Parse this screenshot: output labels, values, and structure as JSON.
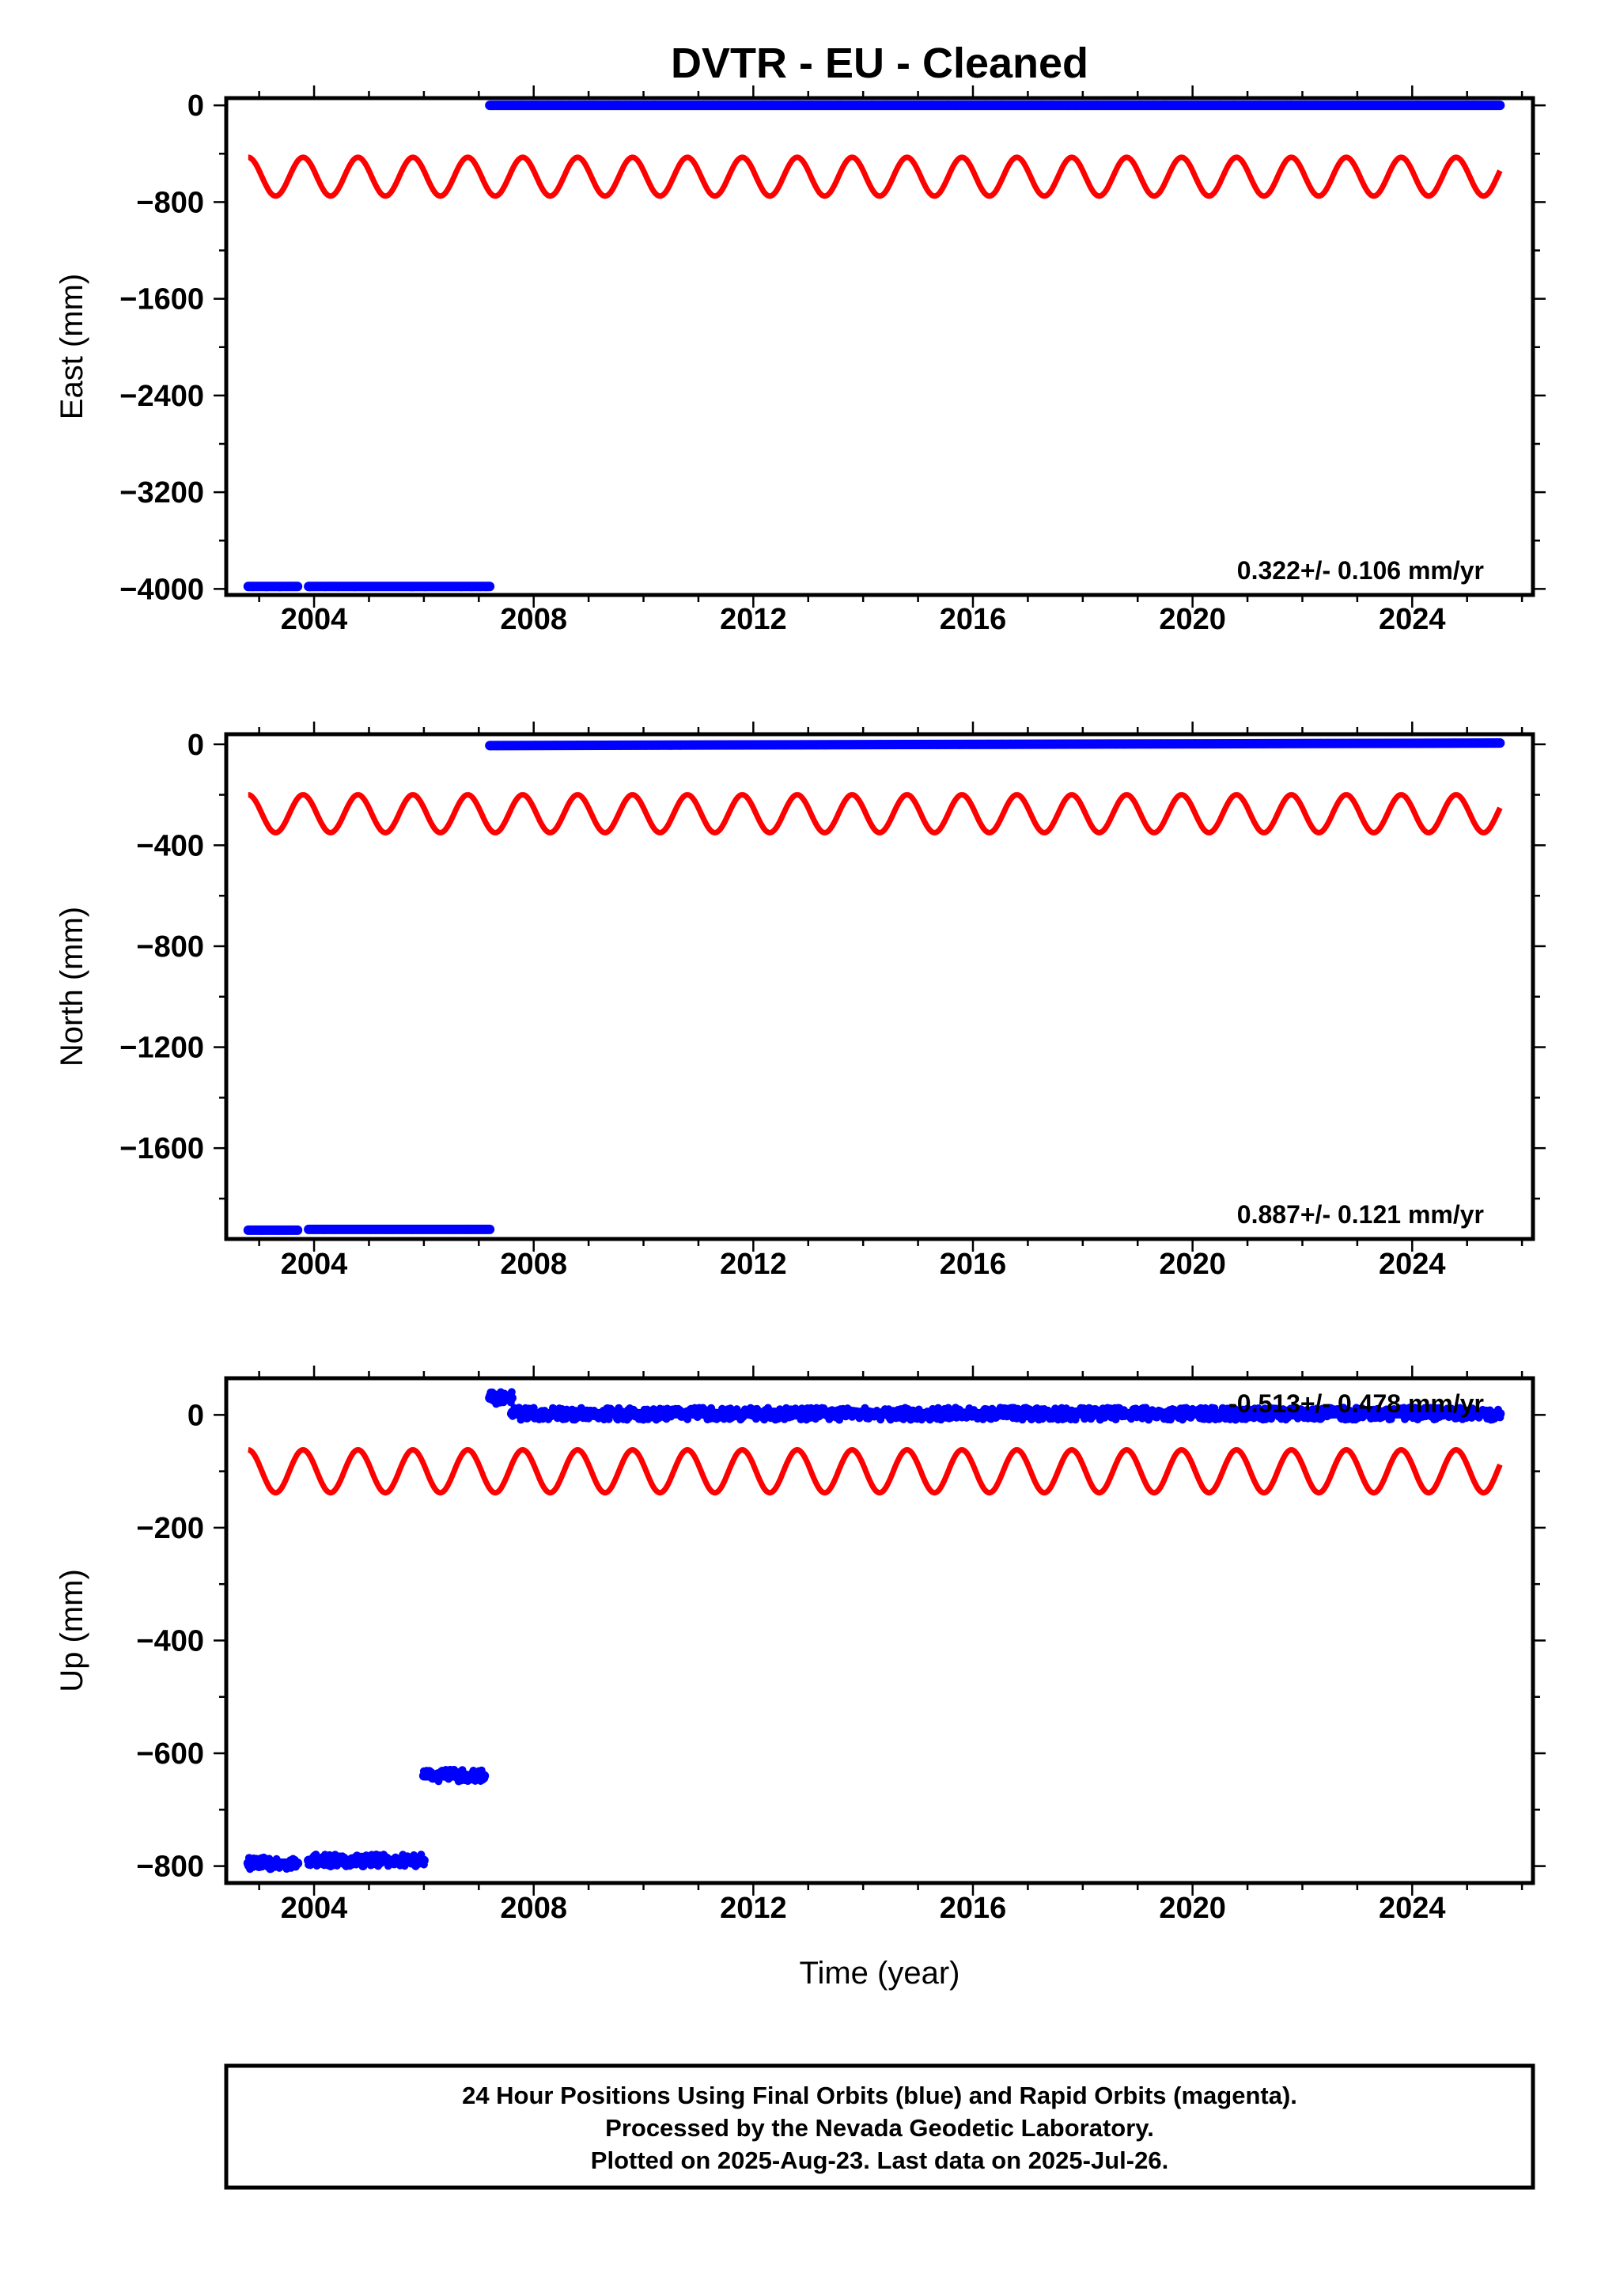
{
  "chart_data": [
    {
      "type": "scatter",
      "title": "DVTR  - EU - Cleaned",
      "ylabel": "East (mm)",
      "xlabel": "",
      "xlim": [
        2002.4,
        2026.2
      ],
      "ylim": [
        -4050,
        60
      ],
      "xticks": [
        2004,
        2008,
        2012,
        2016,
        2020,
        2024
      ],
      "yticks": [
        0,
        -800,
        -1600,
        -2400,
        -3200,
        -4000
      ],
      "rate_text": "0.322+/- 0.106 mm/yr",
      "series": [
        {
          "color": "#0000ff",
          "segments": [
            {
              "x": [
                2002.8,
                2003.7
              ],
              "y": [
                -3980,
                -3980
              ]
            },
            {
              "x": [
                2003.9,
                2007.2
              ],
              "y": [
                -3980,
                -3980
              ]
            },
            {
              "x": [
                2007.2,
                2025.6
              ],
              "y": [
                0,
                0
              ]
            }
          ]
        },
        {
          "color": "#ff0000",
          "sinusoid": {
            "x": [
              2002.8,
              2025.6
            ],
            "center": -590,
            "amplitude": 160,
            "period": 1
          }
        }
      ]
    },
    {
      "type": "scatter",
      "ylabel": "North (mm)",
      "xlabel": "",
      "xlim": [
        2002.4,
        2026.2
      ],
      "ylim": [
        -1960,
        40
      ],
      "xticks": [
        2004,
        2008,
        2012,
        2016,
        2020,
        2024
      ],
      "yticks": [
        0,
        -400,
        -800,
        -1200,
        -1600
      ],
      "rate_text": "0.887+/- 0.121 mm/yr",
      "series": [
        {
          "color": "#0000ff",
          "segments": [
            {
              "x": [
                2002.8,
                2003.7
              ],
              "y": [
                -1925,
                -1925
              ]
            },
            {
              "x": [
                2003.9,
                2007.2
              ],
              "y": [
                -1922,
                -1922
              ]
            },
            {
              "x": [
                2007.2,
                2025.6
              ],
              "y": [
                -5,
                5
              ]
            }
          ]
        },
        {
          "color": "#ff0000",
          "sinusoid": {
            "x": [
              2002.8,
              2025.6
            ],
            "center": -275,
            "amplitude": 75,
            "period": 1
          }
        }
      ]
    },
    {
      "type": "scatter",
      "ylabel": "Up (mm)",
      "xlabel": "Time (year)",
      "xlim": [
        2002.4,
        2026.2
      ],
      "ylim": [
        -830,
        65
      ],
      "xticks": [
        2004,
        2008,
        2012,
        2016,
        2020,
        2024
      ],
      "yticks": [
        0,
        -200,
        -400,
        -600,
        -800
      ],
      "rate_text": "-0.513+/- 0.478 mm/yr",
      "series": [
        {
          "color": "#0000ff",
          "segments": [
            {
              "x": [
                2002.8,
                2003.7
              ],
              "y": [
                -795,
                -795
              ]
            },
            {
              "x": [
                2003.9,
                2006.0
              ],
              "y": [
                -790,
                -790
              ]
            },
            {
              "x": [
                2006.0,
                2007.1
              ],
              "y": [
                -640,
                -640
              ]
            },
            {
              "x": [
                2007.2,
                2007.6
              ],
              "y": [
                30,
                30
              ]
            },
            {
              "x": [
                2007.6,
                2025.6
              ],
              "y": [
                2,
                2
              ]
            }
          ]
        },
        {
          "color": "#ff0000",
          "sinusoid": {
            "x": [
              2002.8,
              2025.6
            ],
            "center": -100,
            "amplitude": 38,
            "period": 1
          }
        }
      ]
    }
  ],
  "footer": {
    "line1": "24 Hour Positions Using Final Orbits (blue) and Rapid Orbits (magenta).",
    "line2": "Processed by the Nevada Geodetic Laboratory.",
    "line3": "Plotted on 2025-Aug-23. Last data on 2025-Jul-26."
  }
}
